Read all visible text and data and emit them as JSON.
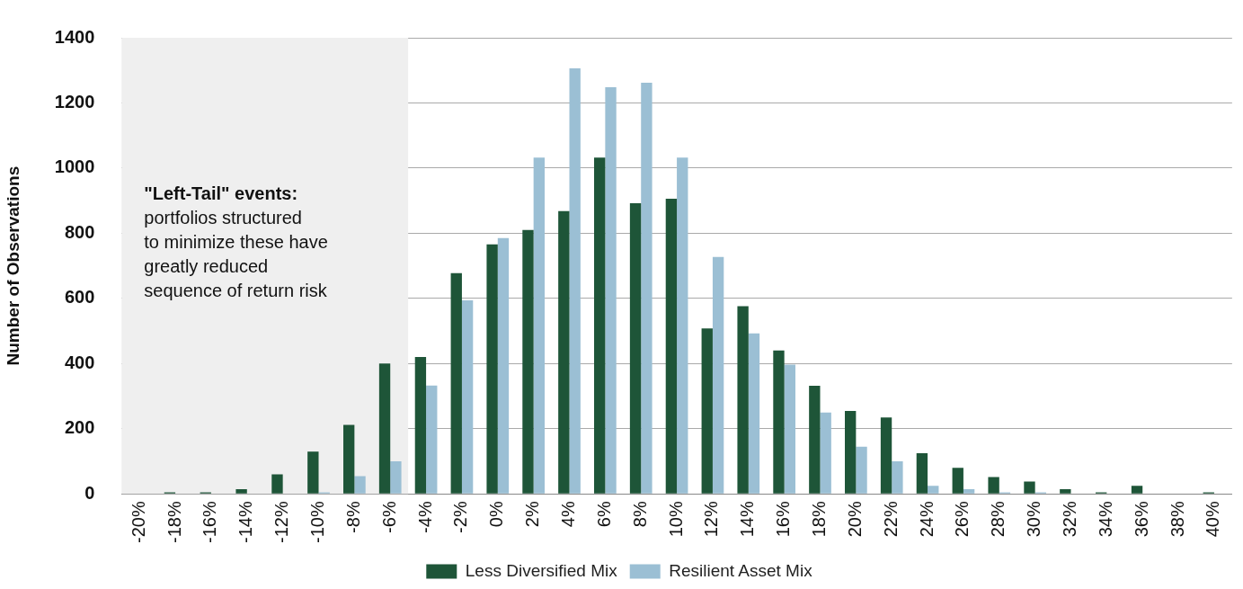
{
  "chart_data": {
    "type": "bar",
    "ylabel": "Number of Observations",
    "categories": [
      "-20%",
      "-18%",
      "-16%",
      "-14%",
      "-12%",
      "-10%",
      "-8%",
      "-6%",
      "-4%",
      "-2%",
      "0%",
      "2%",
      "4%",
      "6%",
      "8%",
      "10%",
      "12%",
      "14%",
      "16%",
      "18%",
      "20%",
      "22%",
      "24%",
      "26%",
      "28%",
      "30%",
      "32%",
      "34%",
      "36%",
      "38%",
      "40%"
    ],
    "series": [
      {
        "name": "Less Diversified Mix",
        "color": "#1e5538",
        "values": [
          0,
          5,
          5,
          15,
          60,
          130,
          212,
          400,
          420,
          678,
          766,
          810,
          868,
          1032,
          892,
          906,
          508,
          576,
          440,
          332,
          255,
          235,
          125,
          80,
          52,
          38,
          15,
          5,
          25,
          0,
          5
        ]
      },
      {
        "name": "Resilient Asset Mix",
        "color": "#9bbfd4",
        "values": [
          0,
          0,
          0,
          0,
          0,
          5,
          55,
          100,
          333,
          594,
          785,
          1032,
          1306,
          1248,
          1262,
          1032,
          727,
          493,
          397,
          250,
          145,
          100,
          25,
          15,
          5,
          5,
          0,
          0,
          0,
          0,
          0
        ]
      }
    ],
    "ylim": [
      0,
      1400
    ],
    "yticks": [
      0,
      200,
      400,
      600,
      800,
      1000,
      1200,
      1400
    ],
    "grid": "y",
    "legend": "bottom",
    "bands": [
      {
        "axis": "x",
        "from": "-20%",
        "to": "-6%",
        "color": "#efefef",
        "label": "\"Left-Tail\" events:\nportfolios structured\nto minimize these have\ngreatly reduced\nsequence of return risk"
      }
    ]
  }
}
